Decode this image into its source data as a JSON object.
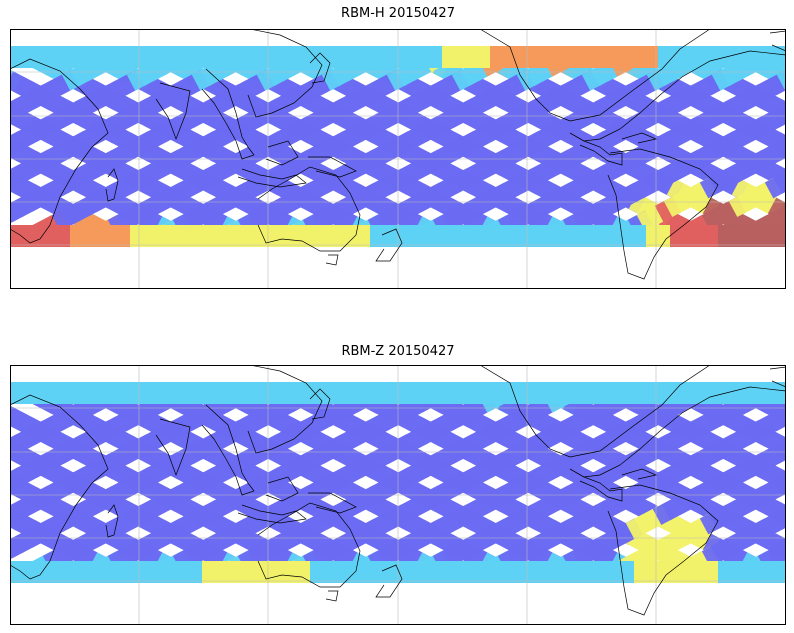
{
  "figure": {
    "panels": [
      {
        "title": "RBM-H 20150427",
        "variant": "H"
      },
      {
        "title": "RBM-Z 20150427",
        "variant": "Z"
      }
    ]
  },
  "colors": {
    "swath_low": "#6a6af2",
    "swath_mid": "#5ed2f5",
    "warm_yellow": "#f2f26a",
    "warm_orange": "#f59a5a",
    "warm_red": "#e06060",
    "dark_red": "#b86060",
    "coast": "#000000",
    "grid": "#bbbbbb"
  }
}
